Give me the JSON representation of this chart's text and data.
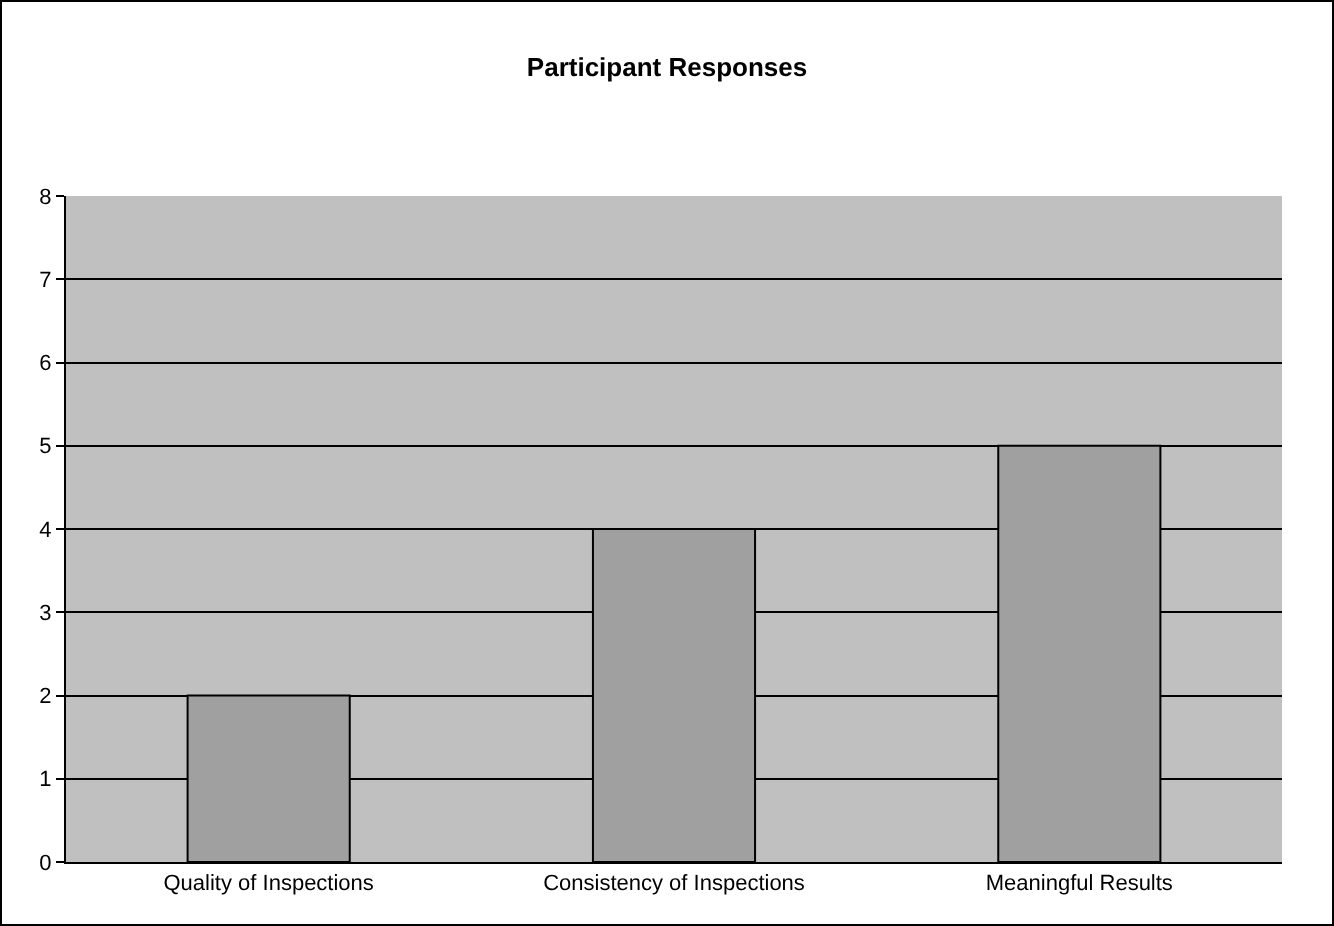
{
  "chart_data": {
    "type": "bar",
    "title": "Participant Responses",
    "categories": [
      "Quality of Inspections",
      "Consistency of Inspections",
      "Meaningful Results"
    ],
    "values": [
      2,
      4,
      5
    ],
    "color": "#a0a0a0",
    "ylim": [
      0,
      8
    ],
    "yticks": [
      0,
      1,
      2,
      3,
      4,
      5,
      6,
      7,
      8
    ],
    "grid": "y"
  }
}
